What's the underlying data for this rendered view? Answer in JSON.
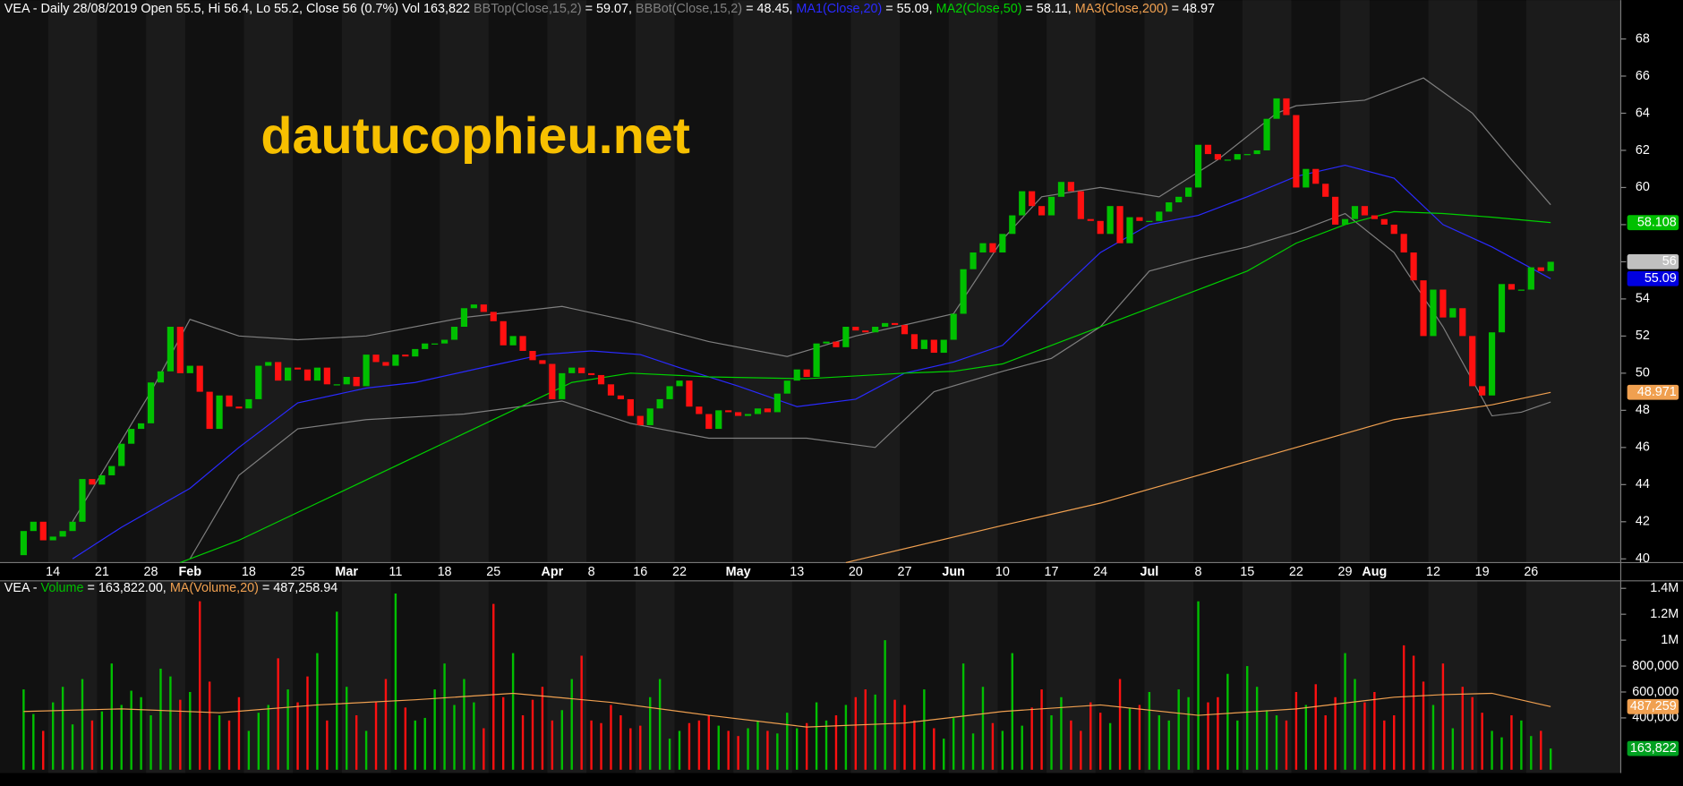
{
  "chart_data": [
    {
      "type": "candlestick",
      "header": [
        {
          "text": "VEA - Daily 28/08/2019 Open 55.5, Hi 56.4, Lo 55.2, Close 56 (0.7%) Vol 163,822 ",
          "color": "#ffffff"
        },
        {
          "text": "BBTop(Close,15,2)",
          "color": "#7f7f7f"
        },
        {
          "text": " = 59.07, ",
          "color": "#ffffff"
        },
        {
          "text": "BBBot(Close,15,2)",
          "color": "#7f7f7f"
        },
        {
          "text": " = 48.45, ",
          "color": "#ffffff"
        },
        {
          "text": "MA1(Close,20)",
          "color": "#2a2aff"
        },
        {
          "text": " = 55.09, ",
          "color": "#ffffff"
        },
        {
          "text": "MA2(Close,50)",
          "color": "#00d000"
        },
        {
          "text": " = 58.11, ",
          "color": "#ffffff"
        },
        {
          "text": "MA3(Close,200)",
          "color": "#f0a050"
        },
        {
          "text": " = 48.97",
          "color": "#ffffff"
        }
      ],
      "watermark": "dautucophieu.net",
      "categories": [
        null,
        null,
        null,
        "14",
        null,
        null,
        null,
        null,
        "21",
        null,
        null,
        null,
        null,
        "28",
        null,
        null,
        null,
        "Feb",
        null,
        null,
        null,
        null,
        null,
        "18",
        null,
        null,
        null,
        null,
        "25",
        null,
        null,
        null,
        null,
        "Mar",
        null,
        null,
        null,
        null,
        "11",
        null,
        null,
        null,
        null,
        "18",
        null,
        null,
        null,
        null,
        "25",
        null,
        null,
        null,
        null,
        null,
        "Apr",
        null,
        null,
        null,
        "8",
        null,
        null,
        null,
        null,
        "16",
        null,
        null,
        null,
        "22",
        null,
        null,
        null,
        null,
        null,
        "May",
        null,
        null,
        null,
        null,
        null,
        "13",
        null,
        null,
        null,
        null,
        null,
        "20",
        null,
        null,
        null,
        null,
        "27",
        null,
        null,
        null,
        null,
        "Jun",
        null,
        null,
        null,
        null,
        "10",
        null,
        null,
        null,
        null,
        "17",
        null,
        null,
        null,
        null,
        "24",
        null,
        null,
        null,
        null,
        "Jul",
        null,
        null,
        null,
        null,
        "8",
        null,
        null,
        null,
        null,
        "15",
        null,
        null,
        null,
        null,
        "22",
        null,
        null,
        null,
        null,
        "29",
        null,
        null,
        "Aug",
        null,
        null,
        null,
        null,
        null,
        "12",
        null,
        null,
        null,
        null,
        "19",
        null,
        null,
        null,
        null,
        "26",
        null,
        null
      ],
      "open": [
        40.2,
        41.5,
        42,
        41,
        41.2,
        41.5,
        42,
        44.3,
        44,
        44.5,
        45,
        46.2,
        47,
        47.3,
        49.5,
        50.1,
        52.5,
        50,
        50.4,
        49,
        47,
        48.8,
        48.2,
        48.1,
        48.6,
        50.4,
        50.6,
        49.6,
        50.3,
        50.2,
        49.6,
        50.3,
        49.4,
        49.4,
        49.8,
        49.3,
        51,
        50.6,
        50.4,
        51,
        50.9,
        51.3,
        51.6,
        51.6,
        51.8,
        52.5,
        53.5,
        53.7,
        53.3,
        52.8,
        51.5,
        52,
        51.2,
        50.7,
        50.5,
        48.6,
        50,
        50.3,
        50,
        49.9,
        49.4,
        48.8,
        48.6,
        47.7,
        47.2,
        48.1,
        48.6,
        49.3,
        49.6,
        48.2,
        47.8,
        47,
        48,
        47.9,
        47.7,
        47.8,
        48.1,
        47.9,
        48.9,
        49.6,
        50.2,
        49.8,
        51.6,
        51.7,
        51.4,
        52.5,
        52.3,
        52.2,
        52.5,
        52.7,
        52.6,
        52.1,
        51.3,
        51.8,
        51.1,
        51.8,
        53.2,
        55.6,
        56.5,
        57,
        56.5,
        57.5,
        58.5,
        59.8,
        59,
        58.5,
        59.5,
        60.3,
        59.8,
        58.3,
        58.2,
        57.5,
        59,
        57,
        58.4,
        58.2,
        58.2,
        58.7,
        59.2,
        59.5,
        60,
        62.3,
        61.8,
        61.5,
        61.5,
        61.8,
        61.8,
        62,
        63.7,
        64.8,
        63.9,
        60,
        61,
        60.2,
        59.5,
        58,
        58.3,
        59,
        58.5,
        58.3,
        58,
        57.5,
        56.5,
        55,
        52,
        54.5,
        53,
        53.5,
        52,
        49.3,
        48.8,
        52.2,
        54.8,
        54.5,
        54.5,
        55.7,
        55.5
      ],
      "close": [
        41.5,
        42,
        41,
        41.2,
        41.5,
        42,
        44.3,
        44,
        44.5,
        45,
        46.2,
        47,
        47.3,
        49.5,
        50.1,
        52.5,
        50,
        50.4,
        49,
        47,
        48.8,
        48.2,
        48.1,
        48.6,
        50.4,
        50.6,
        49.6,
        50.3,
        50.2,
        49.6,
        50.3,
        49.4,
        49.4,
        49.8,
        49.3,
        51,
        50.6,
        50.4,
        51,
        50.9,
        51.3,
        51.6,
        51.6,
        51.8,
        52.5,
        53.5,
        53.7,
        53.3,
        52.8,
        51.5,
        52,
        51.2,
        50.7,
        50.5,
        48.6,
        50,
        50.3,
        50,
        49.9,
        49.4,
        48.8,
        48.6,
        47.7,
        47.2,
        48.1,
        48.6,
        49.3,
        49.6,
        48.2,
        47.8,
        47,
        48,
        47.9,
        47.7,
        47.8,
        48.1,
        47.9,
        48.9,
        49.6,
        50.2,
        49.8,
        51.6,
        51.7,
        51.4,
        52.5,
        52.3,
        52.2,
        52.5,
        52.7,
        52.6,
        52.1,
        51.3,
        51.8,
        51.1,
        51.8,
        53.2,
        55.6,
        56.5,
        57,
        56.5,
        57.5,
        58.5,
        59.8,
        59,
        58.5,
        59.5,
        60.3,
        59.8,
        58.3,
        58.2,
        57.5,
        59,
        57,
        58.4,
        58.2,
        58.2,
        58.7,
        59.2,
        59.5,
        60,
        62.3,
        61.8,
        61.5,
        61.5,
        61.8,
        61.8,
        62,
        63.7,
        64.8,
        63.9,
        60,
        61,
        60.2,
        59.5,
        58,
        58.3,
        59,
        58.5,
        58.3,
        58,
        57.5,
        56.5,
        55,
        52,
        54.5,
        53,
        53.5,
        52,
        49.3,
        48.8,
        52.2,
        54.8,
        54.5,
        54.5,
        55.7,
        55.5,
        56
      ],
      "up_color": "#00c000",
      "down_color": "#ff1010",
      "ylim": [
        39.8,
        69.8
      ],
      "yticks": [
        40,
        42,
        44,
        46,
        48,
        50,
        52,
        54,
        56,
        58,
        60,
        62,
        64,
        66,
        68
      ],
      "lines": [
        {
          "color": "#7f7f7f",
          "x": [
            5,
            13,
            17,
            22,
            28,
            35,
            45,
            55,
            62,
            70,
            78,
            85,
            90,
            95,
            100,
            104,
            110,
            116,
            122,
            128,
            130,
            137,
            143,
            148,
            152,
            156
          ],
          "values": [
            42,
            49,
            52.9,
            52,
            51.8,
            52,
            53,
            53.6,
            52.8,
            51.7,
            50.9,
            52,
            52.6,
            53.2,
            57.2,
            59.5,
            60,
            59.5,
            61.5,
            64,
            64.4,
            64.7,
            65.9,
            64,
            61.5,
            59.07
          ]
        },
        {
          "color": "#7f7f7f",
          "x": [
            17,
            22,
            28,
            35,
            45,
            55,
            62,
            70,
            80,
            87,
            93,
            100,
            105,
            110,
            115,
            120,
            125,
            130,
            135,
            140,
            145,
            150,
            153,
            156
          ],
          "values": [
            40,
            44.5,
            47,
            47.5,
            47.8,
            48.5,
            47.3,
            46.5,
            46.5,
            46,
            49,
            50.1,
            50.8,
            52.5,
            55.5,
            56.2,
            56.8,
            57.6,
            58.6,
            56.5,
            52.5,
            47.7,
            47.9,
            48.45
          ]
        },
        {
          "color": "#2a2aff",
          "x": [
            5,
            10,
            17,
            22,
            28,
            35,
            40,
            46,
            53,
            58,
            63,
            67,
            73,
            79,
            85,
            90,
            95,
            100,
            105,
            110,
            115,
            120,
            125,
            130,
            135,
            140,
            145,
            150,
            156
          ],
          "values": [
            40,
            41.7,
            43.8,
            46,
            48.4,
            49.2,
            49.5,
            50.2,
            51,
            51.2,
            51,
            50.3,
            49.3,
            48.2,
            48.6,
            50,
            50.6,
            51.5,
            54,
            56.5,
            58,
            58.5,
            59.5,
            60.6,
            61.2,
            60.5,
            58,
            56.8,
            55.09
          ]
        },
        {
          "color": "#00d000",
          "x": [
            16,
            22,
            30,
            40,
            50,
            56,
            62,
            70,
            80,
            90,
            95,
            100,
            105,
            110,
            115,
            120,
            125,
            130,
            135,
            140,
            145,
            150,
            156
          ],
          "values": [
            39.8,
            41,
            43,
            45.5,
            48,
            49.5,
            50,
            49.8,
            49.7,
            50,
            50.1,
            50.5,
            51.5,
            52.5,
            53.5,
            54.5,
            55.5,
            57,
            58,
            58.7,
            58.6,
            58.4,
            58.11
          ]
        },
        {
          "color": "#f0a050",
          "x": [
            84,
            100,
            110,
            120,
            130,
            140,
            150,
            156
          ],
          "values": [
            39.8,
            41.8,
            43,
            44.5,
            46,
            47.5,
            48.3,
            48.97
          ]
        }
      ],
      "markers": [
        {
          "value": 58.108,
          "color": "#00c000",
          "text_color": "#000000"
        },
        {
          "value": 56,
          "color": "#c0c0c0",
          "text_color": "#000000"
        },
        {
          "value": 55.09,
          "color": "#0000e0",
          "text_color": "#ffffff"
        },
        {
          "value": 48.971,
          "color": "#f0a050",
          "text_color": "#000000"
        }
      ]
    },
    {
      "type": "bar",
      "header": [
        {
          "text": "VEA - ",
          "color": "#ffffff"
        },
        {
          "text": "Volume",
          "color": "#00c000"
        },
        {
          "text": " = 163,822.00, ",
          "color": "#ffffff"
        },
        {
          "text": "MA(Volume,20)",
          "color": "#f0a050"
        },
        {
          "text": " = 487,258.94",
          "color": "#ffffff"
        }
      ],
      "values": [
        620000,
        430000,
        300000,
        520000,
        640000,
        350000,
        700000,
        380000,
        450000,
        820000,
        500000,
        610000,
        560000,
        420000,
        780000,
        720000,
        540000,
        600000,
        1300000,
        680000,
        420000,
        380000,
        560000,
        300000,
        440000,
        500000,
        860000,
        620000,
        520000,
        720000,
        900000,
        380000,
        1220000,
        640000,
        420000,
        300000,
        520000,
        700000,
        1360000,
        480000,
        380000,
        400000,
        620000,
        820000,
        500000,
        700000,
        520000,
        320000,
        1280000,
        560000,
        900000,
        420000,
        540000,
        640000,
        380000,
        460000,
        700000,
        880000,
        380000,
        360000,
        500000,
        420000,
        320000,
        340000,
        560000,
        700000,
        240000,
        300000,
        360000,
        380000,
        420000,
        340000,
        300000,
        260000,
        320000,
        380000,
        300000,
        280000,
        440000,
        320000,
        360000,
        520000,
        380000,
        420000,
        500000,
        560000,
        620000,
        580000,
        1000000,
        540000,
        500000,
        380000,
        620000,
        320000,
        240000,
        400000,
        820000,
        280000,
        640000,
        360000,
        300000,
        900000,
        340000,
        480000,
        620000,
        420000,
        560000,
        380000,
        300000,
        520000,
        440000,
        360000,
        700000,
        480000,
        500000,
        600000,
        420000,
        380000,
        620000,
        560000,
        1300000,
        520000,
        560000,
        740000,
        380000,
        800000,
        640000,
        460000,
        420000,
        380000,
        600000,
        500000,
        660000,
        420000,
        560000,
        900000,
        700000,
        520000,
        600000,
        380000,
        420000,
        960000,
        880000,
        680000,
        500000,
        820000,
        320000,
        640000,
        560000,
        440000,
        300000,
        250000,
        420000,
        380000,
        260000,
        300000,
        163822
      ],
      "ylim": [
        -25000,
        1458000
      ],
      "yticks": [
        {
          "value": 400000,
          "label": "400,000"
        },
        {
          "value": 600000,
          "label": "600,000"
        },
        {
          "value": 800000,
          "label": "800,000"
        },
        {
          "value": 1000000,
          "label": "1M"
        },
        {
          "value": 1200000,
          "label": "1.2M"
        },
        {
          "value": 1400000,
          "label": "1.4M"
        }
      ],
      "lines": [
        {
          "color": "#f0a050",
          "x": [
            0,
            10,
            20,
            30,
            40,
            50,
            60,
            70,
            80,
            90,
            100,
            110,
            120,
            130,
            140,
            145,
            150,
            156
          ],
          "values": [
            450000,
            470000,
            440000,
            500000,
            540000,
            590000,
            520000,
            420000,
            330000,
            360000,
            450000,
            500000,
            420000,
            470000,
            560000,
            580000,
            590000,
            487259
          ]
        }
      ],
      "markers": [
        {
          "value": 487259,
          "label": "487,259",
          "color": "#f0a050",
          "text_color": "#000000"
        },
        {
          "value": 163822,
          "label": "163,822",
          "color": "#00a020",
          "text_color": "#ffffff"
        }
      ]
    }
  ]
}
